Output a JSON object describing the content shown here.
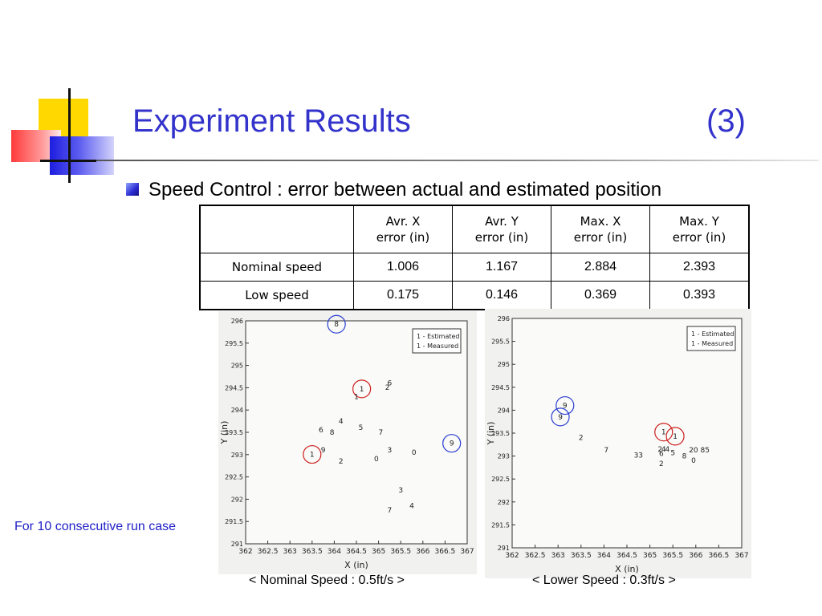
{
  "title": "Experiment Results",
  "title_number": "(3)",
  "bullet_text": "Speed Control : error between actual and estimated position",
  "table": {
    "headers": [
      "",
      "Avr. X\nerror (in)",
      "Avr. Y\nerror (in)",
      "Max. X\nerror (in)",
      "Max. Y\nerror (in)"
    ],
    "rows": [
      {
        "label": "Nominal speed",
        "values": [
          "1.006",
          "1.167",
          "2.884",
          "2.393"
        ]
      },
      {
        "label": "Low speed",
        "values": [
          "0.175",
          "0.146",
          "0.369",
          "0.393"
        ]
      }
    ]
  },
  "footnote": "For 10 consecutive run case",
  "colors": {
    "title": "#3333cc",
    "footnote": "#2020c8",
    "circle_estimated": "#cc2020",
    "circle_measured": "#2a3ed0"
  },
  "chart_data": [
    {
      "type": "scatter",
      "caption": "< Nominal Speed : 0.5ft/s >",
      "xlabel": "X (in)",
      "ylabel": "Y (in)",
      "xlim": [
        362,
        367
      ],
      "ylim": [
        291,
        296
      ],
      "xticks": [
        "362",
        "362.5",
        "363",
        "363.5",
        "364",
        "364.5",
        "365",
        "365.5",
        "366",
        "366.5",
        "367"
      ],
      "yticks": [
        "291",
        "291.5",
        "292",
        "292.5",
        "293",
        "293.5",
        "294",
        "294.5",
        "295",
        "295.5",
        "296"
      ],
      "legend": {
        "position": "top-right",
        "entries": [
          "1 - Estimated",
          "1 - Measured"
        ]
      },
      "points": [
        {
          "label": "8",
          "x": 364.05,
          "y": 295.87,
          "circle": "measured"
        },
        {
          "label": "1",
          "x": 364.62,
          "y": 294.42,
          "circle": "estimated"
        },
        {
          "label": "1",
          "x": 364.5,
          "y": 294.25
        },
        {
          "label": "6",
          "x": 365.25,
          "y": 294.55
        },
        {
          "label": "2",
          "x": 365.2,
          "y": 294.45
        },
        {
          "label": "4",
          "x": 364.15,
          "y": 293.7
        },
        {
          "label": "5",
          "x": 364.6,
          "y": 293.55
        },
        {
          "label": "7",
          "x": 365.05,
          "y": 293.45
        },
        {
          "label": "6",
          "x": 363.7,
          "y": 293.5
        },
        {
          "label": "8",
          "x": 363.95,
          "y": 293.45
        },
        {
          "label": "9",
          "x": 363.75,
          "y": 293.05
        },
        {
          "label": "1",
          "x": 363.5,
          "y": 292.95,
          "circle": "estimated"
        },
        {
          "label": "2",
          "x": 364.15,
          "y": 292.8
        },
        {
          "label": "0",
          "x": 364.95,
          "y": 292.85
        },
        {
          "label": "3",
          "x": 365.25,
          "y": 293.05
        },
        {
          "label": "0",
          "x": 365.8,
          "y": 293.0
        },
        {
          "label": "9",
          "x": 366.65,
          "y": 293.2,
          "circle": "measured"
        },
        {
          "label": "3",
          "x": 365.5,
          "y": 292.15
        },
        {
          "label": "4",
          "x": 365.75,
          "y": 291.8
        },
        {
          "label": "7",
          "x": 365.25,
          "y": 291.7
        }
      ]
    },
    {
      "type": "scatter",
      "caption": "< Lower Speed : 0.3ft/s >",
      "xlabel": "X (in)",
      "ylabel": "Y (in)",
      "xlim": [
        362,
        367
      ],
      "ylim": [
        291,
        296
      ],
      "xticks": [
        "362",
        "362.5",
        "363",
        "363.5",
        "364",
        "364.5",
        "365",
        "365.5",
        "366",
        "366.5",
        "367"
      ],
      "yticks": [
        "291",
        "291.5",
        "292",
        "292.5",
        "293",
        "293.5",
        "294",
        "294.5",
        "295",
        "295.5",
        "296"
      ],
      "legend": {
        "position": "top-right",
        "entries": [
          "1 - Estimated",
          "1 - Measured"
        ]
      },
      "points": [
        {
          "label": "9",
          "x": 363.15,
          "y": 294.05,
          "circle": "measured"
        },
        {
          "label": "9",
          "x": 363.05,
          "y": 293.8,
          "circle": "measured"
        },
        {
          "label": "1",
          "x": 365.3,
          "y": 293.47,
          "circle": "estimated"
        },
        {
          "label": "1",
          "x": 365.55,
          "y": 293.38,
          "circle": "estimated"
        },
        {
          "label": "2",
          "x": 363.5,
          "y": 293.35
        },
        {
          "label": "7",
          "x": 364.05,
          "y": 293.08
        },
        {
          "label": "3",
          "x": 364.7,
          "y": 292.97
        },
        {
          "label": "3",
          "x": 364.8,
          "y": 292.97
        },
        {
          "label": "2",
          "x": 365.22,
          "y": 293.1
        },
        {
          "label": "4",
          "x": 365.3,
          "y": 293.1
        },
        {
          "label": "4",
          "x": 365.38,
          "y": 293.1
        },
        {
          "label": "6",
          "x": 365.25,
          "y": 293.0
        },
        {
          "label": "5",
          "x": 365.5,
          "y": 293.02
        },
        {
          "label": "8",
          "x": 365.75,
          "y": 292.95
        },
        {
          "label": "2",
          "x": 365.9,
          "y": 293.08
        },
        {
          "label": "0",
          "x": 366.0,
          "y": 293.08
        },
        {
          "label": "8",
          "x": 366.15,
          "y": 293.08
        },
        {
          "label": "5",
          "x": 366.25,
          "y": 293.08
        },
        {
          "label": "0",
          "x": 365.95,
          "y": 292.85
        },
        {
          "label": "2",
          "x": 365.25,
          "y": 292.78
        }
      ]
    }
  ]
}
